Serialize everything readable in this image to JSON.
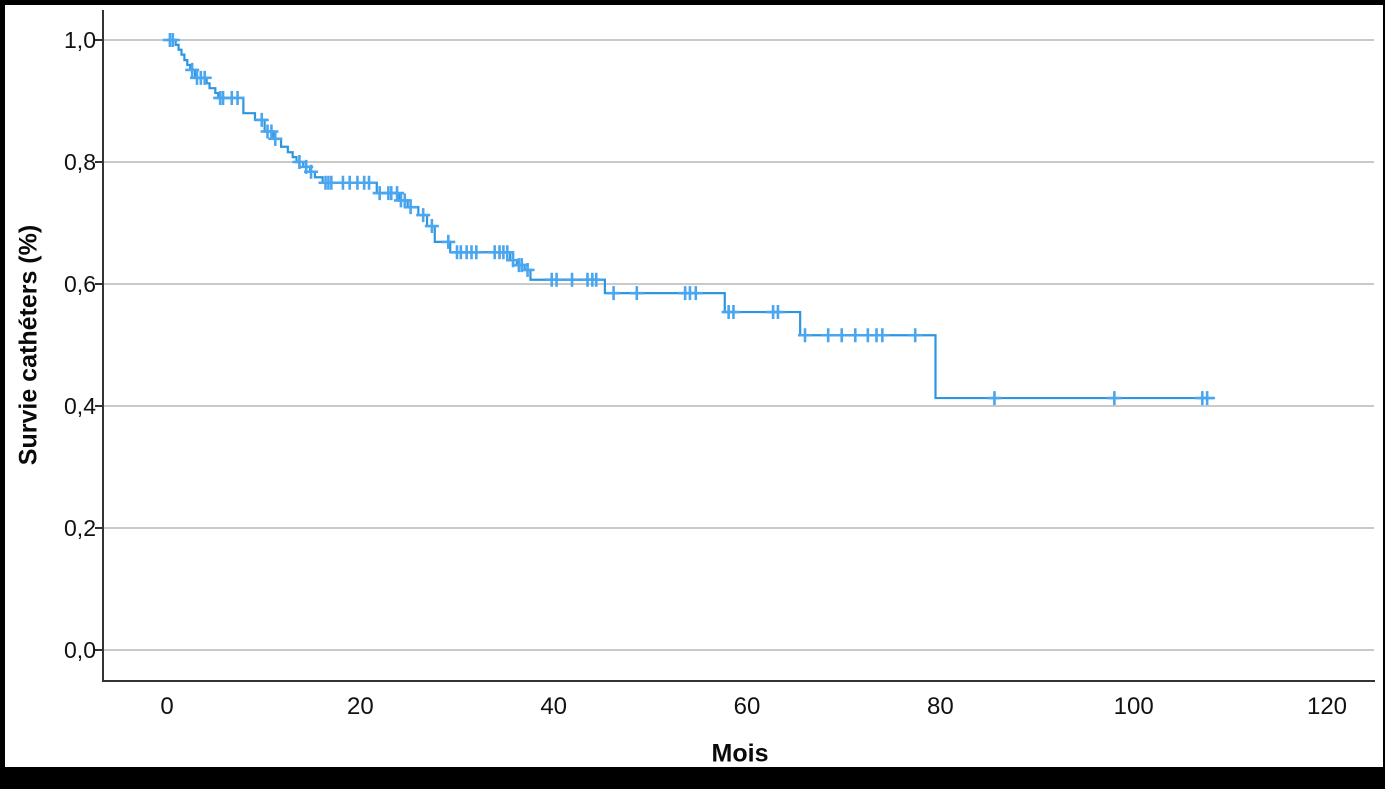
{
  "window": {
    "frame_color": "#000000",
    "surface_color": "#ffffff"
  },
  "chart_data": {
    "type": "line",
    "subtype": "kaplan-meier-step-function",
    "title": "",
    "xlabel": "Mois",
    "ylabel": "Survie cathéters (%)",
    "xlim": [
      -6.6,
      124.5
    ],
    "ylim": [
      -0.051,
      1.049
    ],
    "x_ticks": [
      0,
      20,
      40,
      60,
      80,
      100,
      120
    ],
    "x_tick_labels": [
      "0",
      "20",
      "40",
      "60",
      "80",
      "100",
      "120"
    ],
    "y_ticks": [
      0.0,
      0.2,
      0.4,
      0.6,
      0.8,
      1.0
    ],
    "y_tick_labels": [
      "0,0",
      "0,2",
      "0,4",
      "0,6",
      "0,8",
      "1,0"
    ],
    "grid": "horizontal",
    "legend": "none",
    "line_color": "#2d96e0",
    "censor_color": "#4aa6ef",
    "grid_color": "#c9c9c9",
    "axis_color": "#333333",
    "text_color": "#111111",
    "survival_steps": [
      [
        0.0,
        1.0
      ],
      [
        0.9,
        0.992
      ],
      [
        1.2,
        0.984
      ],
      [
        1.5,
        0.976
      ],
      [
        1.8,
        0.967
      ],
      [
        2.1,
        0.959
      ],
      [
        2.4,
        0.951
      ],
      [
        2.9,
        0.938
      ],
      [
        4.1,
        0.929
      ],
      [
        4.4,
        0.921
      ],
      [
        5.0,
        0.913
      ],
      [
        5.3,
        0.905
      ],
      [
        7.9,
        0.88
      ],
      [
        9.1,
        0.869
      ],
      [
        10.1,
        0.85
      ],
      [
        11.0,
        0.838
      ],
      [
        11.8,
        0.825
      ],
      [
        12.5,
        0.816
      ],
      [
        13.0,
        0.808
      ],
      [
        13.4,
        0.8
      ],
      [
        14.1,
        0.792
      ],
      [
        14.8,
        0.784
      ],
      [
        15.3,
        0.775
      ],
      [
        16.1,
        0.766
      ],
      [
        21.7,
        0.749
      ],
      [
        24.0,
        0.737
      ],
      [
        24.9,
        0.726
      ],
      [
        26.0,
        0.713
      ],
      [
        26.9,
        0.695
      ],
      [
        27.7,
        0.669
      ],
      [
        29.3,
        0.652
      ],
      [
        35.5,
        0.639
      ],
      [
        36.2,
        0.631
      ],
      [
        37.0,
        0.623
      ],
      [
        37.6,
        0.607
      ],
      [
        45.3,
        0.585
      ],
      [
        57.7,
        0.554
      ],
      [
        65.5,
        0.516
      ],
      [
        79.5,
        0.413
      ]
    ],
    "curve_end": 108.4,
    "censor_times": [
      0.3,
      0.6,
      2.6,
      3.1,
      3.5,
      3.9,
      5.5,
      5.8,
      6.7,
      7.3,
      9.8,
      10.4,
      10.8,
      11.2,
      13.7,
      14.4,
      14.9,
      16.4,
      16.7,
      17.0,
      18.2,
      18.9,
      19.7,
      20.4,
      20.9,
      22.0,
      22.9,
      23.2,
      23.8,
      24.2,
      24.6,
      25.2,
      26.5,
      27.4,
      29.1,
      30.0,
      30.4,
      31.0,
      31.5,
      32.0,
      33.9,
      34.4,
      34.8,
      35.2,
      35.8,
      36.4,
      36.7,
      37.3,
      39.8,
      40.3,
      41.9,
      43.5,
      44.0,
      44.4,
      46.2,
      48.6,
      53.6,
      54.1,
      54.7,
      58.1,
      58.6,
      62.7,
      63.2,
      66.0,
      68.4,
      69.8,
      71.2,
      72.5,
      73.4,
      74.0,
      77.4,
      85.6,
      98.0,
      107.1,
      107.6
    ]
  }
}
